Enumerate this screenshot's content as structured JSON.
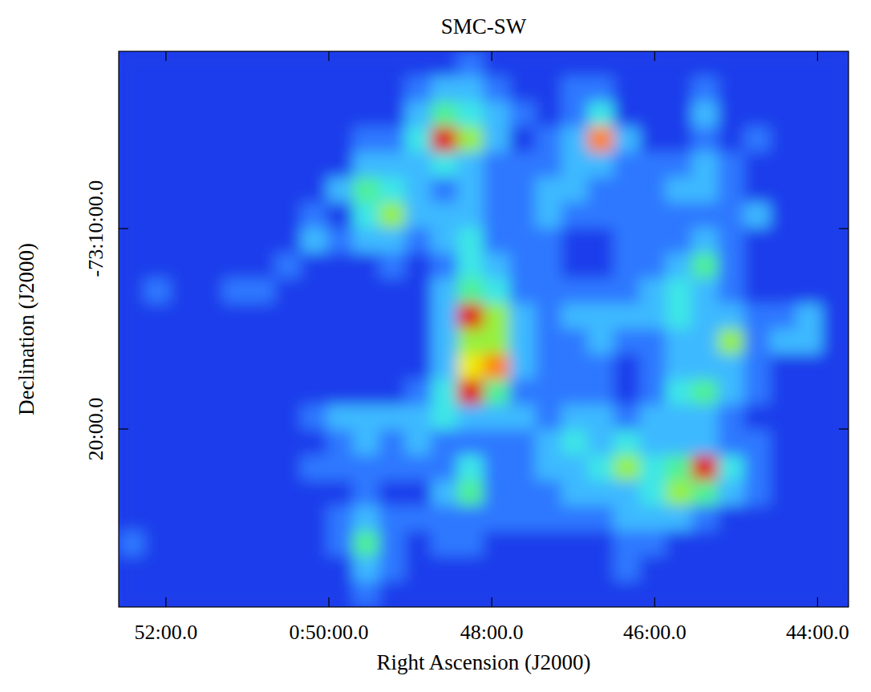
{
  "chart_data": {
    "type": "heatmap",
    "title": "SMC-SW",
    "x_label": "Right Ascension (J2000)",
    "y_label": "Declination (J2000)",
    "xlim": [
      52.58,
      43.62
    ],
    "ylim": [
      -73.4813,
      -73.0193
    ],
    "xticks": [
      {
        "value": 52,
        "label": "52:00.0"
      },
      {
        "value": 50,
        "label": "0:50:00.0"
      },
      {
        "value": 48,
        "label": "48:00.0"
      },
      {
        "value": 46,
        "label": "46:00.0"
      },
      {
        "value": 44,
        "label": "44:00.0"
      }
    ],
    "yticks": [
      {
        "value": -73.1667,
        "label": "-73:10:00.0"
      },
      {
        "value": -73.3333,
        "label": "20:00.0"
      }
    ],
    "x": [
      52.42,
      52.1,
      51.78,
      51.46,
      51.14,
      50.82,
      50.5,
      50.18,
      49.86,
      49.54,
      49.22,
      48.9,
      48.58,
      48.26,
      47.94,
      47.62,
      47.3,
      46.98,
      46.66,
      46.34,
      46.02,
      45.7,
      45.38,
      45.06,
      44.74,
      44.42,
      44.1,
      43.78
    ],
    "y": [
      -73.0298,
      -73.0508,
      -73.0718,
      -73.0928,
      -73.1138,
      -73.1348,
      -73.1558,
      -73.1768,
      -73.1978,
      -73.2188,
      -73.2398,
      -73.2608,
      -73.2818,
      -73.3028,
      -73.3238,
      -73.3448,
      -73.3658,
      -73.3868,
      -73.4078,
      -73.4288,
      -73.4498,
      -73.4708
    ],
    "zlim": [
      0,
      9
    ],
    "values": [
      [
        1,
        1,
        1,
        1,
        1,
        1,
        1,
        1,
        1,
        1,
        1,
        1,
        1,
        2,
        1,
        1,
        1,
        1,
        1,
        1,
        1,
        1,
        1,
        1,
        1,
        1,
        1,
        1
      ],
      [
        1,
        1,
        1,
        1,
        1,
        1,
        1,
        1,
        1,
        1,
        1,
        2,
        3,
        3,
        2,
        1,
        1,
        2,
        2,
        1,
        1,
        1,
        2,
        1,
        1,
        1,
        1,
        1
      ],
      [
        1,
        1,
        1,
        1,
        1,
        1,
        1,
        1,
        1,
        1,
        1,
        3,
        5,
        4,
        3,
        2,
        1,
        2,
        4,
        1,
        1,
        1,
        3,
        1,
        1,
        1,
        1,
        1
      ],
      [
        1,
        1,
        1,
        1,
        1,
        1,
        1,
        1,
        1,
        2,
        2,
        4,
        9,
        6,
        3,
        1,
        2,
        3,
        8,
        3,
        1,
        1,
        2,
        1,
        2,
        1,
        1,
        1
      ],
      [
        1,
        1,
        1,
        1,
        1,
        1,
        1,
        1,
        1,
        3,
        3,
        3,
        4,
        3,
        2,
        2,
        2,
        3,
        3,
        2,
        2,
        2,
        3,
        2,
        1,
        1,
        1,
        1
      ],
      [
        1,
        1,
        1,
        1,
        1,
        1,
        1,
        1,
        3,
        5,
        4,
        3,
        2,
        3,
        2,
        2,
        3,
        3,
        2,
        2,
        2,
        3,
        3,
        2,
        1,
        1,
        1,
        1
      ],
      [
        1,
        1,
        1,
        1,
        1,
        1,
        1,
        2,
        1,
        4,
        6,
        3,
        3,
        3,
        2,
        2,
        3,
        2,
        2,
        2,
        2,
        2,
        2,
        2,
        3,
        1,
        1,
        1
      ],
      [
        1,
        1,
        1,
        1,
        1,
        1,
        1,
        3,
        2,
        3,
        3,
        2,
        3,
        4,
        2,
        2,
        2,
        1,
        1,
        2,
        2,
        2,
        3,
        2,
        1,
        1,
        1,
        1
      ],
      [
        1,
        1,
        1,
        1,
        1,
        1,
        2,
        1,
        1,
        1,
        2,
        1,
        2,
        4,
        3,
        2,
        2,
        1,
        1,
        2,
        2,
        3,
        5,
        2,
        1,
        1,
        1,
        1
      ],
      [
        1,
        2,
        1,
        1,
        2,
        2,
        1,
        1,
        1,
        1,
        1,
        1,
        3,
        5,
        4,
        2,
        2,
        2,
        2,
        2,
        3,
        4,
        3,
        2,
        1,
        1,
        1,
        1
      ],
      [
        1,
        1,
        1,
        1,
        1,
        1,
        1,
        1,
        1,
        1,
        1,
        1,
        3,
        9,
        6,
        3,
        2,
        3,
        3,
        3,
        3,
        4,
        3,
        3,
        2,
        2,
        3,
        1
      ],
      [
        1,
        1,
        1,
        1,
        1,
        1,
        1,
        1,
        1,
        1,
        1,
        1,
        3,
        6,
        6,
        3,
        2,
        2,
        3,
        2,
        2,
        3,
        3,
        6,
        2,
        3,
        3,
        1
      ],
      [
        1,
        1,
        1,
        1,
        1,
        1,
        1,
        1,
        1,
        1,
        1,
        1,
        3,
        7,
        8,
        3,
        2,
        2,
        2,
        1,
        2,
        3,
        3,
        3,
        2,
        1,
        1,
        1
      ],
      [
        1,
        1,
        1,
        1,
        1,
        1,
        1,
        1,
        1,
        1,
        1,
        2,
        4,
        9,
        5,
        2,
        2,
        2,
        2,
        1,
        2,
        4,
        5,
        3,
        2,
        1,
        1,
        1
      ],
      [
        1,
        1,
        1,
        1,
        1,
        1,
        1,
        2,
        3,
        3,
        3,
        3,
        4,
        3,
        3,
        3,
        2,
        3,
        3,
        2,
        3,
        3,
        3,
        2,
        1,
        1,
        1,
        1
      ],
      [
        1,
        1,
        1,
        1,
        1,
        1,
        1,
        1,
        2,
        3,
        2,
        3,
        2,
        2,
        2,
        2,
        3,
        4,
        3,
        4,
        3,
        3,
        3,
        2,
        2,
        1,
        1,
        1
      ],
      [
        1,
        1,
        1,
        1,
        1,
        1,
        1,
        2,
        2,
        2,
        2,
        2,
        2,
        4,
        2,
        2,
        3,
        3,
        4,
        6,
        4,
        5,
        9,
        4,
        2,
        1,
        1,
        1
      ],
      [
        1,
        1,
        1,
        1,
        1,
        1,
        1,
        1,
        1,
        2,
        1,
        1,
        3,
        5,
        2,
        2,
        2,
        3,
        3,
        3,
        4,
        6,
        5,
        3,
        2,
        1,
        1,
        1
      ],
      [
        1,
        1,
        1,
        1,
        1,
        1,
        1,
        1,
        2,
        3,
        2,
        2,
        2,
        2,
        2,
        2,
        2,
        2,
        2,
        3,
        3,
        3,
        2,
        1,
        1,
        1,
        1,
        1
      ],
      [
        2,
        1,
        1,
        1,
        1,
        1,
        1,
        1,
        2,
        5,
        2,
        1,
        2,
        2,
        1,
        1,
        1,
        1,
        1,
        2,
        2,
        1,
        1,
        1,
        1,
        1,
        1,
        1
      ],
      [
        1,
        1,
        1,
        1,
        1,
        1,
        1,
        1,
        1,
        3,
        2,
        1,
        1,
        1,
        1,
        1,
        1,
        1,
        1,
        2,
        1,
        1,
        1,
        1,
        1,
        1,
        1,
        1
      ],
      [
        1,
        1,
        1,
        1,
        1,
        1,
        1,
        1,
        1,
        2,
        1,
        1,
        1,
        1,
        1,
        1,
        1,
        1,
        1,
        1,
        1,
        1,
        1,
        1,
        1,
        1,
        1,
        1
      ]
    ]
  }
}
